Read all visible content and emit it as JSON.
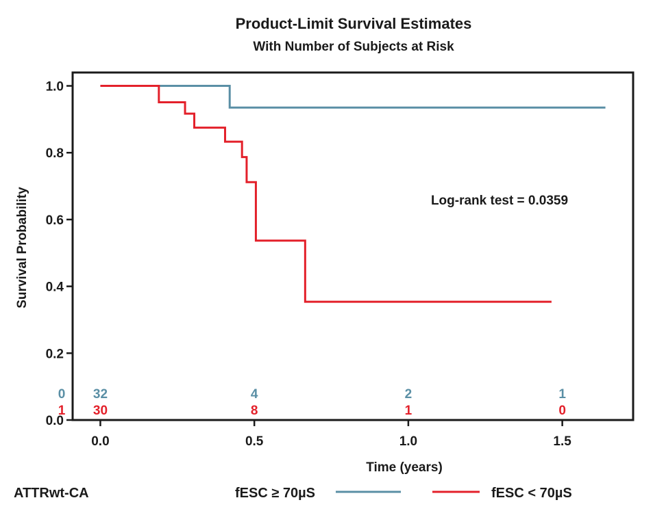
{
  "chart_data": {
    "type": "line",
    "subtype": "kaplan-meier step",
    "title": "Product-Limit Survival Estimates",
    "subtitle": "With Number of Subjects at Risk",
    "xlabel": "Time (years)",
    "ylabel": "Survival Probability",
    "xlim": [
      -0.09,
      1.73
    ],
    "ylim": [
      0.0,
      1.04
    ],
    "x_ticks": [
      0.0,
      0.5,
      1.0,
      1.5
    ],
    "x_tick_labels": [
      "0.0",
      "0.5",
      "1.0",
      "1.5"
    ],
    "y_ticks": [
      0.0,
      0.2,
      0.4,
      0.6,
      0.8,
      1.0
    ],
    "y_tick_labels": [
      "0.0",
      "0.2",
      "0.4",
      "0.6",
      "0.8",
      "1.0"
    ],
    "grid": false,
    "legend_position": "bottom",
    "annotation": "Log-rank test = 0.0359",
    "group_label": "ATTRwt-CA",
    "series": [
      {
        "name": "fESC ≥ 70µS",
        "color": "#5a8fa5",
        "risk_row_label": "0",
        "x": [
          0.0,
          0.42,
          1.64
        ],
        "y": [
          1.0,
          0.935,
          0.935
        ]
      },
      {
        "name": "fESC < 70µS",
        "color": "#e3202a",
        "risk_row_label": "1",
        "x": [
          0.0,
          0.19,
          0.275,
          0.305,
          0.405,
          0.46,
          0.475,
          0.505,
          0.665,
          1.465
        ],
        "y": [
          1.0,
          0.951,
          0.917,
          0.875,
          0.833,
          0.787,
          0.712,
          0.537,
          0.354,
          0.354
        ]
      }
    ],
    "at_risk": {
      "times": [
        0.0,
        0.5,
        1.0,
        1.5
      ],
      "rows": [
        {
          "label": "0",
          "color": "#5a8fa5",
          "values": [
            "32",
            "4",
            "2",
            "1"
          ]
        },
        {
          "label": "1",
          "color": "#e3202a",
          "values": [
            "30",
            "8",
            "1",
            "0"
          ]
        }
      ]
    }
  }
}
